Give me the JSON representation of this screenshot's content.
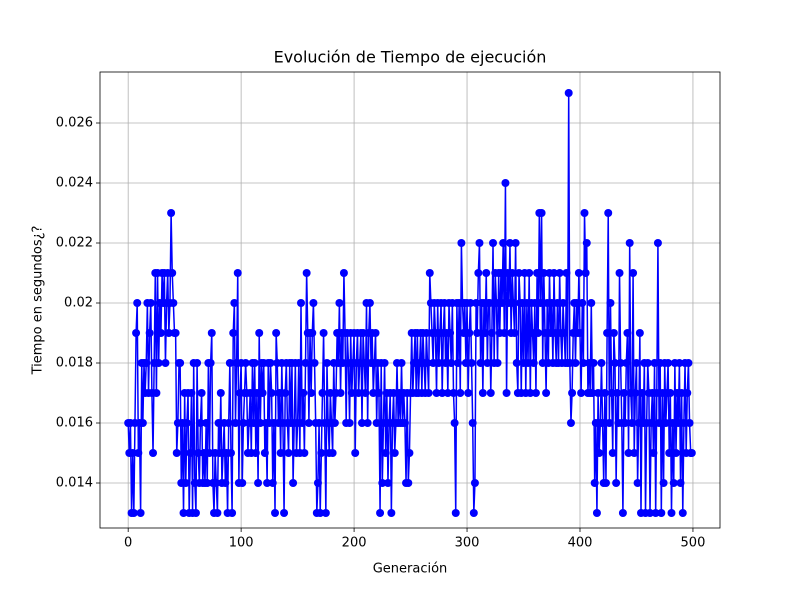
{
  "chart_data": {
    "type": "line",
    "title": "Evolución de Tiempo de ejecución",
    "x_label": "Generación",
    "y_label": "Tiempo en segundos¿?",
    "xlim": [
      -24.95,
      523.95
    ],
    "ylim": [
      0.0125,
      0.0277
    ],
    "xticks": [
      0,
      100,
      200,
      300,
      400,
      500
    ],
    "yticks": [
      0.014,
      0.016,
      0.018,
      0.02,
      0.022,
      0.024,
      0.026
    ],
    "grid": true,
    "marker": "circle",
    "series": [
      {
        "color": "#0000ff",
        "x": [
          0,
          1,
          2,
          3,
          4,
          5,
          6,
          7,
          8,
          9,
          10,
          11,
          12,
          13,
          14,
          15,
          16,
          17,
          18,
          19,
          20,
          21,
          22,
          23,
          24,
          25,
          26,
          27,
          28,
          29,
          30,
          31,
          32,
          33,
          34,
          35,
          36,
          37,
          38,
          39,
          40,
          41,
          42,
          43,
          44,
          45,
          46,
          47,
          48,
          49,
          50,
          51,
          52,
          53,
          54,
          55,
          56,
          57,
          58,
          59,
          60,
          61,
          62,
          63,
          64,
          65,
          66,
          67,
          68,
          69,
          70,
          71,
          72,
          73,
          74,
          75,
          76,
          77,
          78,
          79,
          80,
          81,
          82,
          83,
          84,
          85,
          86,
          87,
          88,
          89,
          90,
          91,
          92,
          93,
          94,
          95,
          96,
          97,
          98,
          99,
          100,
          101,
          102,
          103,
          104,
          105,
          106,
          107,
          108,
          109,
          110,
          111,
          112,
          113,
          114,
          115,
          116,
          117,
          118,
          119,
          120,
          121,
          122,
          123,
          124,
          125,
          126,
          127,
          128,
          129,
          130,
          131,
          132,
          133,
          134,
          135,
          136,
          137,
          138,
          139,
          140,
          141,
          142,
          143,
          144,
          145,
          146,
          147,
          148,
          149,
          150,
          151,
          152,
          153,
          154,
          155,
          156,
          157,
          158,
          159,
          160,
          161,
          162,
          163,
          164,
          165,
          166,
          167,
          168,
          169,
          170,
          171,
          172,
          173,
          174,
          175,
          176,
          177,
          178,
          179,
          180,
          181,
          182,
          183,
          184,
          185,
          186,
          187,
          188,
          189,
          190,
          191,
          192,
          193,
          194,
          195,
          196,
          197,
          198,
          199,
          200,
          201,
          202,
          203,
          204,
          205,
          206,
          207,
          208,
          209,
          210,
          211,
          212,
          213,
          214,
          215,
          216,
          217,
          218,
          219,
          220,
          221,
          222,
          223,
          224,
          225,
          226,
          227,
          228,
          229,
          230,
          231,
          232,
          233,
          234,
          235,
          236,
          237,
          238,
          239,
          240,
          241,
          242,
          243,
          244,
          245,
          246,
          247,
          248,
          249,
          250,
          251,
          252,
          253,
          254,
          255,
          256,
          257,
          258,
          259,
          260,
          261,
          262,
          263,
          264,
          265,
          266,
          267,
          268,
          269,
          270,
          271,
          272,
          273,
          274,
          275,
          276,
          277,
          278,
          279,
          280,
          281,
          282,
          283,
          284,
          285,
          286,
          287,
          288,
          289,
          290,
          291,
          292,
          293,
          294,
          295,
          296,
          297,
          298,
          299,
          300,
          301,
          302,
          303,
          304,
          305,
          306,
          307,
          308,
          309,
          310,
          311,
          312,
          313,
          314,
          315,
          316,
          317,
          318,
          319,
          320,
          321,
          322,
          323,
          324,
          325,
          326,
          327,
          328,
          329,
          330,
          331,
          332,
          333,
          334,
          335,
          336,
          337,
          338,
          339,
          340,
          341,
          342,
          343,
          344,
          345,
          346,
          347,
          348,
          349,
          350,
          351,
          352,
          353,
          354,
          355,
          356,
          357,
          358,
          359,
          360,
          361,
          362,
          363,
          364,
          365,
          366,
          367,
          368,
          369,
          370,
          371,
          372,
          373,
          374,
          375,
          376,
          377,
          378,
          379,
          380,
          381,
          382,
          383,
          384,
          385,
          386,
          387,
          388,
          389,
          390,
          391,
          392,
          393,
          394,
          395,
          396,
          397,
          398,
          399,
          400,
          401,
          402,
          403,
          404,
          405,
          406,
          407,
          408,
          409,
          410,
          411,
          412,
          413,
          414,
          415,
          416,
          417,
          418,
          419,
          420,
          421,
          422,
          423,
          424,
          425,
          426,
          427,
          428,
          429,
          430,
          431,
          432,
          433,
          434,
          435,
          436,
          437,
          438,
          439,
          440,
          441,
          442,
          443,
          444,
          445,
          446,
          447,
          448,
          449,
          450,
          451,
          452,
          453,
          454,
          455,
          456,
          457,
          458,
          459,
          460,
          461,
          462,
          463,
          464,
          465,
          466,
          467,
          468,
          469,
          470,
          471,
          472,
          473,
          474,
          475,
          476,
          477,
          478,
          479,
          480,
          481,
          482,
          483,
          484,
          485,
          486,
          487,
          488,
          489,
          490,
          491,
          492,
          493,
          494,
          495,
          496,
          497,
          498,
          499
        ],
        "values": [
          0.016,
          0.015,
          0.016,
          0.013,
          0.015,
          0.013,
          0.016,
          0.019,
          0.02,
          0.015,
          0.016,
          0.013,
          0.018,
          0.016,
          0.018,
          0.017,
          0.018,
          0.02,
          0.017,
          0.019,
          0.02,
          0.017,
          0.015,
          0.018,
          0.021,
          0.017,
          0.021,
          0.018,
          0.02,
          0.019,
          0.021,
          0.02,
          0.021,
          0.018,
          0.02,
          0.021,
          0.019,
          0.02,
          0.023,
          0.021,
          0.02,
          0.019,
          0.019,
          0.015,
          0.016,
          0.018,
          0.018,
          0.014,
          0.016,
          0.013,
          0.017,
          0.014,
          0.016,
          0.017,
          0.013,
          0.015,
          0.017,
          0.013,
          0.018,
          0.014,
          0.013,
          0.018,
          0.015,
          0.014,
          0.016,
          0.017,
          0.014,
          0.015,
          0.014,
          0.016,
          0.014,
          0.018,
          0.015,
          0.018,
          0.019,
          0.014,
          0.013,
          0.015,
          0.014,
          0.013,
          0.016,
          0.015,
          0.017,
          0.014,
          0.015,
          0.016,
          0.014,
          0.015,
          0.013,
          0.016,
          0.018,
          0.015,
          0.013,
          0.019,
          0.02,
          0.016,
          0.018,
          0.021,
          0.014,
          0.017,
          0.018,
          0.014,
          0.016,
          0.017,
          0.018,
          0.017,
          0.015,
          0.016,
          0.017,
          0.015,
          0.018,
          0.016,
          0.018,
          0.015,
          0.017,
          0.014,
          0.019,
          0.016,
          0.018,
          0.017,
          0.018,
          0.015,
          0.016,
          0.014,
          0.018,
          0.016,
          0.018,
          0.017,
          0.014,
          0.016,
          0.013,
          0.019,
          0.018,
          0.016,
          0.017,
          0.015,
          0.018,
          0.016,
          0.013,
          0.017,
          0.018,
          0.016,
          0.015,
          0.018,
          0.016,
          0.018,
          0.014,
          0.016,
          0.018,
          0.015,
          0.016,
          0.018,
          0.015,
          0.02,
          0.016,
          0.017,
          0.015,
          0.018,
          0.021,
          0.019,
          0.016,
          0.019,
          0.017,
          0.019,
          0.02,
          0.018,
          0.016,
          0.013,
          0.014,
          0.016,
          0.013,
          0.015,
          0.017,
          0.019,
          0.016,
          0.013,
          0.018,
          0.016,
          0.015,
          0.017,
          0.016,
          0.015,
          0.018,
          0.016,
          0.017,
          0.019,
          0.018,
          0.02,
          0.017,
          0.019,
          0.018,
          0.021,
          0.019,
          0.016,
          0.019,
          0.018,
          0.016,
          0.019,
          0.017,
          0.018,
          0.019,
          0.015,
          0.018,
          0.019,
          0.017,
          0.018,
          0.019,
          0.016,
          0.019,
          0.018,
          0.017,
          0.02,
          0.016,
          0.019,
          0.02,
          0.018,
          0.019,
          0.017,
          0.018,
          0.019,
          0.016,
          0.018,
          0.017,
          0.013,
          0.018,
          0.014,
          0.016,
          0.018,
          0.015,
          0.017,
          0.014,
          0.016,
          0.017,
          0.013,
          0.016,
          0.017,
          0.015,
          0.016,
          0.018,
          0.016,
          0.017,
          0.016,
          0.018,
          0.016,
          0.017,
          0.016,
          0.014,
          0.017,
          0.014,
          0.015,
          0.017,
          0.019,
          0.017,
          0.018,
          0.019,
          0.017,
          0.019,
          0.017,
          0.018,
          0.019,
          0.017,
          0.019,
          0.018,
          0.017,
          0.019,
          0.018,
          0.017,
          0.021,
          0.02,
          0.019,
          0.018,
          0.02,
          0.019,
          0.017,
          0.02,
          0.018,
          0.019,
          0.02,
          0.017,
          0.019,
          0.02,
          0.018,
          0.019,
          0.017,
          0.02,
          0.019,
          0.018,
          0.02,
          0.017,
          0.016,
          0.013,
          0.02,
          0.018,
          0.02,
          0.017,
          0.022,
          0.02,
          0.019,
          0.02,
          0.018,
          0.02,
          0.017,
          0.019,
          0.02,
          0.018,
          0.016,
          0.013,
          0.014,
          0.02,
          0.019,
          0.021,
          0.022,
          0.018,
          0.02,
          0.017,
          0.02,
          0.019,
          0.021,
          0.018,
          0.02,
          0.02,
          0.017,
          0.019,
          0.022,
          0.018,
          0.021,
          0.02,
          0.018,
          0.021,
          0.019,
          0.021,
          0.02,
          0.022,
          0.019,
          0.024,
          0.017,
          0.021,
          0.02,
          0.022,
          0.019,
          0.021,
          0.02,
          0.019,
          0.022,
          0.018,
          0.017,
          0.021,
          0.02,
          0.017,
          0.02,
          0.018,
          0.021,
          0.017,
          0.02,
          0.018,
          0.021,
          0.017,
          0.02,
          0.019,
          0.018,
          0.02,
          0.017,
          0.021,
          0.019,
          0.023,
          0.02,
          0.023,
          0.018,
          0.021,
          0.019,
          0.017,
          0.02,
          0.018,
          0.021,
          0.019,
          0.02,
          0.018,
          0.021,
          0.019,
          0.018,
          0.02,
          0.018,
          0.021,
          0.019,
          0.018,
          0.02,
          0.019,
          0.018,
          0.021,
          0.018,
          0.027,
          0.018,
          0.016,
          0.017,
          0.019,
          0.02,
          0.018,
          0.02,
          0.019,
          0.021,
          0.019,
          0.017,
          0.02,
          0.018,
          0.023,
          0.021,
          0.022,
          0.017,
          0.018,
          0.017,
          0.02,
          0.017,
          0.018,
          0.014,
          0.016,
          0.013,
          0.017,
          0.015,
          0.016,
          0.018,
          0.016,
          0.014,
          0.017,
          0.014,
          0.019,
          0.023,
          0.016,
          0.02,
          0.017,
          0.015,
          0.019,
          0.018,
          0.014,
          0.017,
          0.016,
          0.021,
          0.018,
          0.016,
          0.013,
          0.017,
          0.016,
          0.018,
          0.019,
          0.015,
          0.022,
          0.017,
          0.016,
          0.021,
          0.015,
          0.017,
          0.018,
          0.014,
          0.016,
          0.019,
          0.013,
          0.017,
          0.016,
          0.018,
          0.013,
          0.016,
          0.018,
          0.017,
          0.013,
          0.016,
          0.017,
          0.015,
          0.018,
          0.013,
          0.017,
          0.022,
          0.016,
          0.018,
          0.013,
          0.017,
          0.014,
          0.018,
          0.016,
          0.017,
          0.018,
          0.015,
          0.017,
          0.013,
          0.016,
          0.014,
          0.018,
          0.015,
          0.017,
          0.016,
          0.018,
          0.014,
          0.017,
          0.013,
          0.016,
          0.018,
          0.015,
          0.017,
          0.018,
          0.016,
          0.015,
          0.015
        ]
      }
    ]
  }
}
